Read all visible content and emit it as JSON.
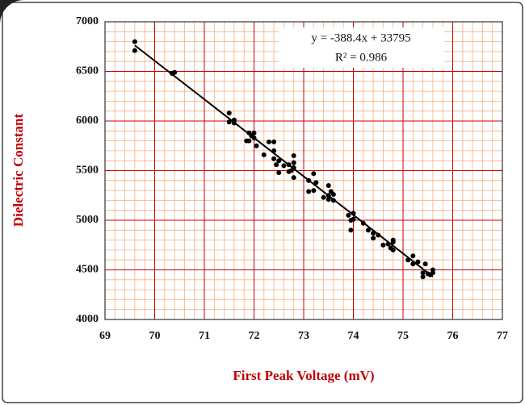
{
  "chart_data": {
    "type": "scatter",
    "x_label": "First Peak Voltage (mV)",
    "y_label": "Dielectric Constant",
    "annotations": [
      "y = -388.4x + 33795",
      "R² = 0.986"
    ],
    "trendline": {
      "slope": -388.4,
      "intercept": 33795,
      "x_range": [
        69.6,
        75.6
      ],
      "color": "#000000"
    },
    "xlim": [
      69,
      77
    ],
    "xticks": [
      69,
      70,
      71,
      72,
      73,
      74,
      75,
      76,
      77
    ],
    "ylim": [
      4000,
      7000
    ],
    "yticks": [
      4000,
      4500,
      5000,
      5500,
      6000,
      6500,
      7000
    ],
    "grid": true,
    "minor_grid": true,
    "grid_color": "#cc0000",
    "minor_grid_color": "#f4b183",
    "series": [
      {
        "color": "#000000",
        "x": [
          69.6,
          69.6,
          70.35,
          70.4,
          71.5,
          71.5,
          71.6,
          71.6,
          71.85,
          71.9,
          71.95,
          72.0,
          71.9,
          72.0,
          72.05,
          72.2,
          72.3,
          72.4,
          72.4,
          72.4,
          72.45,
          72.5,
          72.5,
          72.6,
          72.7,
          72.7,
          72.8,
          72.8,
          72.8,
          72.75,
          72.8,
          73.1,
          73.2,
          73.2,
          73.25,
          73.1,
          73.4,
          73.5,
          73.5,
          73.55,
          73.6,
          73.6,
          73.5,
          73.9,
          73.95,
          74.0,
          74.0,
          73.95,
          74.2,
          74.3,
          74.4,
          74.4,
          74.5,
          74.6,
          74.7,
          74.8,
          74.8,
          74.75,
          74.8,
          75.1,
          75.2,
          75.2,
          75.3,
          75.4,
          75.4,
          75.45,
          75.5,
          75.6,
          75.6,
          75.55
        ],
        "values": [
          6800,
          6710,
          6480,
          6490,
          6080,
          5990,
          6010,
          5980,
          5800,
          5880,
          5850,
          5880,
          5800,
          5830,
          5750,
          5660,
          5790,
          5790,
          5700,
          5620,
          5560,
          5480,
          5600,
          5550,
          5490,
          5560,
          5650,
          5530,
          5430,
          5500,
          5580,
          5400,
          5470,
          5300,
          5380,
          5290,
          5230,
          5350,
          5250,
          5290,
          5200,
          5260,
          5210,
          5050,
          5000,
          5070,
          5010,
          4900,
          4970,
          4900,
          4870,
          4820,
          4850,
          4750,
          4760,
          4800,
          4700,
          4720,
          4780,
          4600,
          4640,
          4560,
          4580,
          4430,
          4470,
          4560,
          4460,
          4500,
          4470,
          4450
        ]
      }
    ]
  }
}
